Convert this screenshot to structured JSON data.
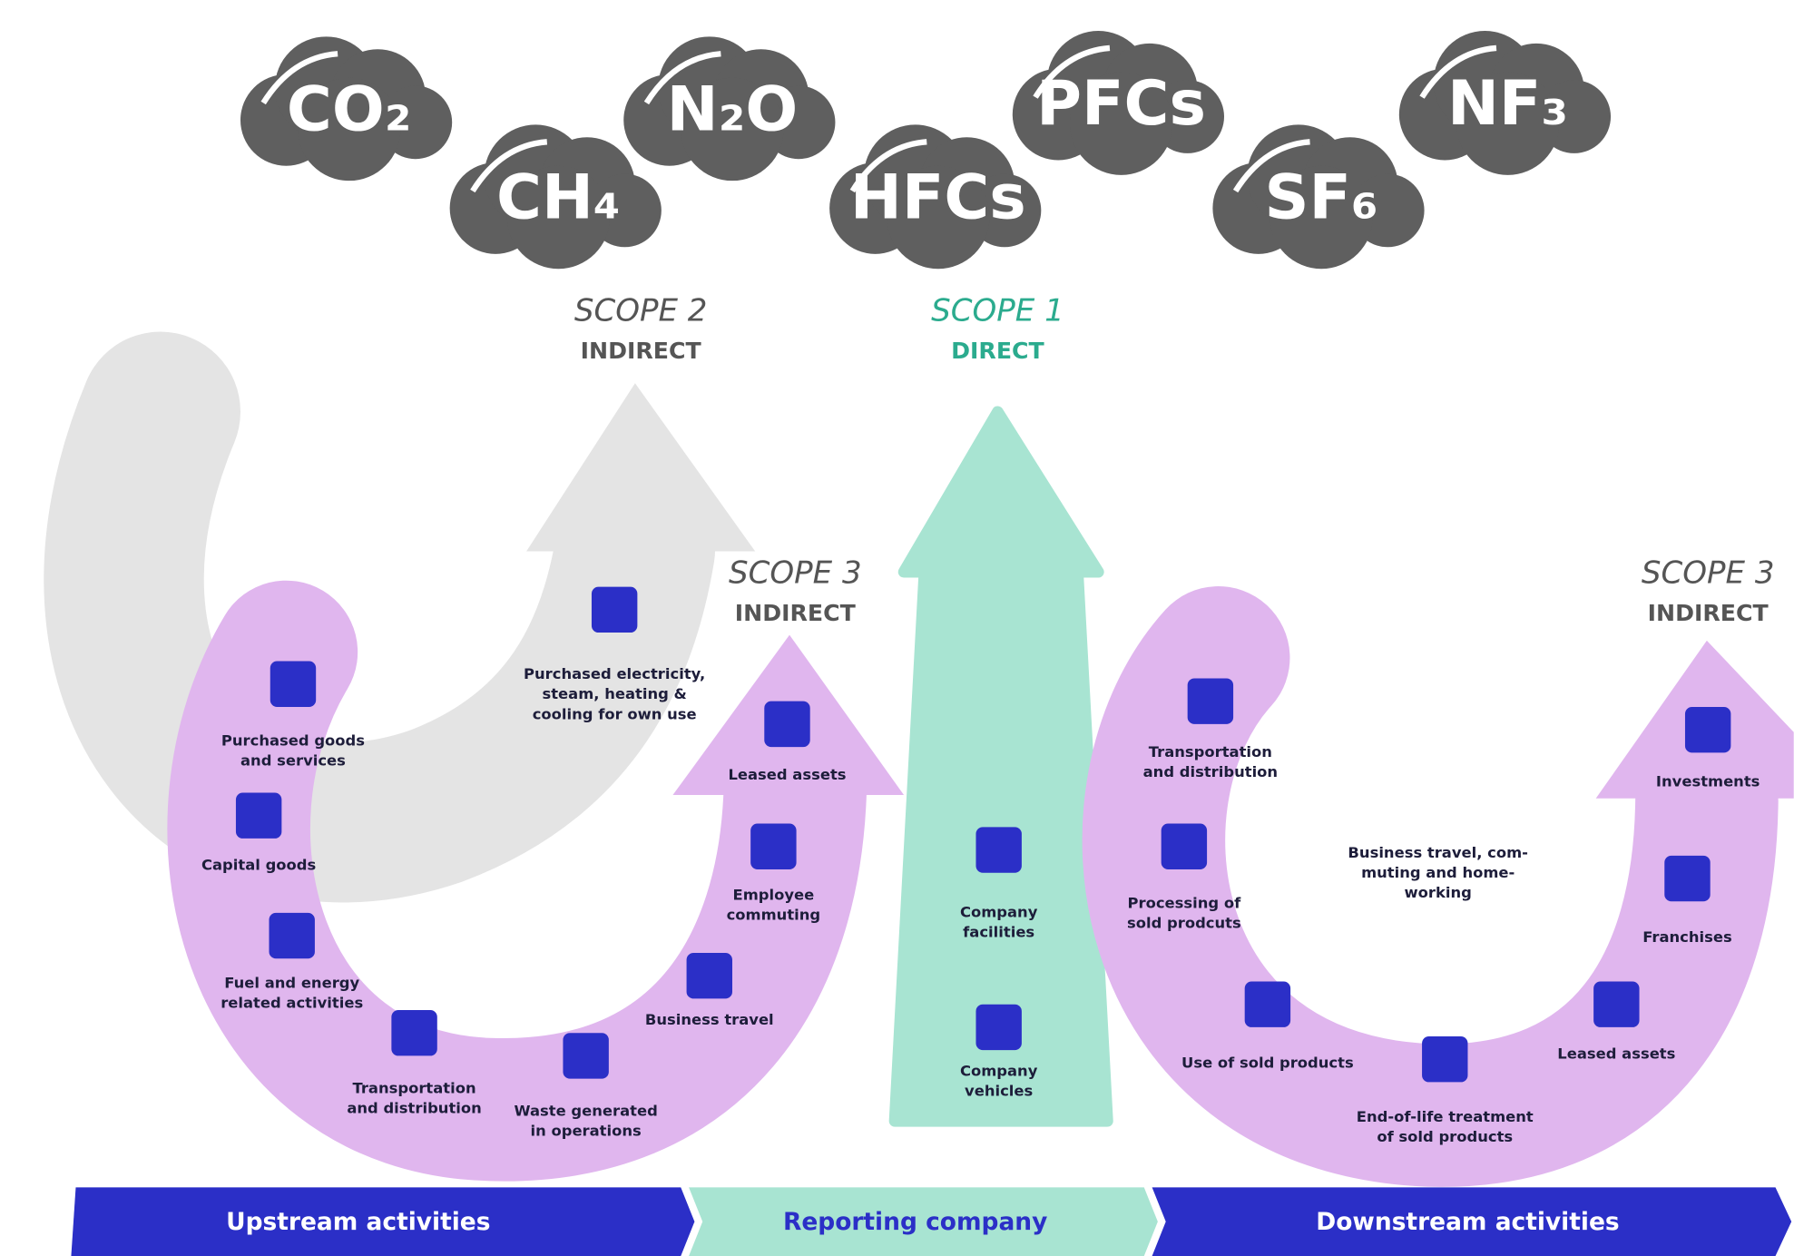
{
  "gases": [
    "CO₂",
    "CH₄",
    "N₂O",
    "HFCs",
    "PFCs",
    "SF₆",
    "NF₃"
  ],
  "scopes": [
    {
      "title": "SCOPE 2",
      "subtitle": "INDIRECT"
    },
    {
      "title": "SCOPE 1",
      "subtitle": "DIRECT"
    },
    {
      "title": "SCOPE 3",
      "subtitle": "INDIRECT"
    },
    {
      "title": "SCOPE 3",
      "subtitle": "INDIRECT"
    }
  ],
  "upstream_items": [
    [
      "Purchased goods",
      "and services"
    ],
    [
      "Capital goods"
    ],
    [
      "Fuel and energy",
      "related activities"
    ],
    [
      "Transportation",
      "and distribution"
    ],
    [
      "Waste generated",
      "in operations"
    ],
    [
      "Business travel"
    ],
    [
      "Employee",
      "commuting"
    ],
    [
      "Leased assets"
    ]
  ],
  "scope2_items": [
    [
      "Purchased electricity,",
      "steam, heating &",
      "cooling for own use"
    ]
  ],
  "scope1_items": [
    [
      "Company",
      "facilities"
    ],
    [
      "Company",
      "vehicles"
    ]
  ],
  "downstream_items": [
    [
      "Transportation",
      "and distribution"
    ],
    [
      "Processing of",
      "sold prodcuts"
    ],
    [
      "Use of sold products"
    ],
    [
      "End-of-life treatment",
      "of sold products"
    ],
    [
      "Leased assets"
    ],
    [
      "Franchises"
    ],
    [
      "Investments"
    ],
    [
      "Business travel, com-",
      "muting and home-",
      "working"
    ]
  ],
  "bar": [
    "Upstream activities",
    "Reporting company",
    "Downstream activities"
  ]
}
